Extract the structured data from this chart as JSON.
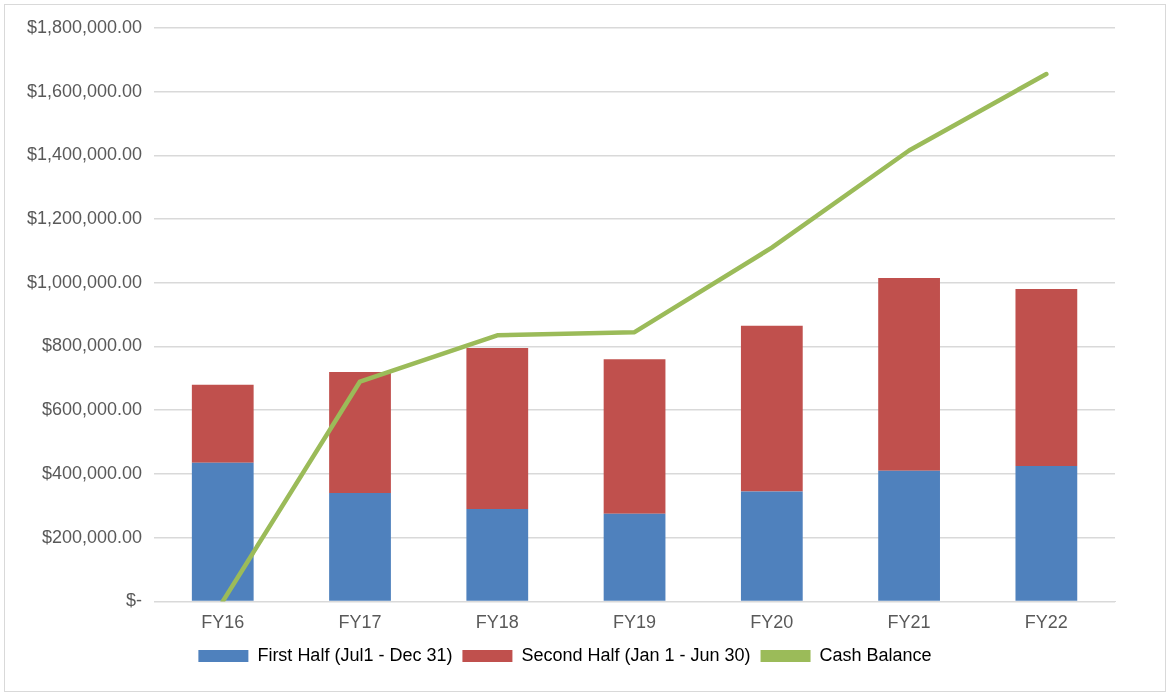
{
  "chart_data": {
    "type": "bar",
    "stacked": true,
    "categories": [
      "FY16",
      "FY17",
      "FY18",
      "FY19",
      "FY20",
      "FY21",
      "FY22"
    ],
    "series": [
      {
        "name": "First Half (Jul1 - Dec 31)",
        "color": "#4f81bd",
        "values": [
          435000,
          340000,
          290000,
          275000,
          345000,
          410000,
          425000
        ]
      },
      {
        "name": "Second Half (Jan 1 - Jun 30)",
        "color": "#c0504d",
        "values": [
          245000,
          380000,
          505000,
          485000,
          520000,
          605000,
          555000
        ]
      },
      {
        "name": "Cash Balance",
        "type": "line",
        "color": "#9bbb59",
        "marker": "none",
        "values": [
          0,
          690000,
          835000,
          845000,
          1110000,
          1415000,
          1655000
        ]
      }
    ],
    "ylim": [
      0,
      1800000
    ],
    "yticks": [
      {
        "value": 0,
        "label": "$-"
      },
      {
        "value": 200000,
        "label": "$200,000.00"
      },
      {
        "value": 400000,
        "label": "$400,000.00"
      },
      {
        "value": 600000,
        "label": "$600,000.00"
      },
      {
        "value": 800000,
        "label": "$800,000.00"
      },
      {
        "value": 1000000,
        "label": "$1,000,000.00"
      },
      {
        "value": 1200000,
        "label": "$1,200,000.00"
      },
      {
        "value": 1400000,
        "label": "$1,400,000.00"
      },
      {
        "value": 1600000,
        "label": "$1,600,000.00"
      },
      {
        "value": 1800000,
        "label": "$1,800,000.00"
      }
    ],
    "grid": "y",
    "legend": "bottom"
  }
}
